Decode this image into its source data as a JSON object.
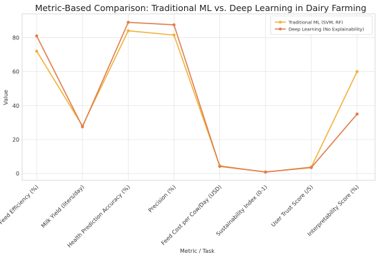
{
  "chart_data": {
    "type": "line",
    "title": "Metric-Based Comparison: Traditional ML vs. Deep Learning in Dairy Farming",
    "xlabel": "Metric / Task",
    "ylabel": "Value",
    "categories": [
      "Feed Efficiency (%)",
      "Milk Yield (liters/day)",
      "Health Prediction Accuracy (%)",
      "Precision (%)",
      "Feed Cost per Cow/Day (USD)",
      "Sustainability Index (0-1)",
      "User Trust Score (/5)",
      "Interpretability Score (%)"
    ],
    "series": [
      {
        "name": "Traditional ML (SVM, RF)",
        "color": "#f0b23a",
        "values": [
          72,
          28,
          84,
          81.5,
          4.5,
          0.8,
          3.8,
          60
        ]
      },
      {
        "name": "Deep Learning (No Explainability)",
        "color": "#e07d4a",
        "values": [
          81,
          27.5,
          89,
          87.5,
          4.2,
          0.9,
          3.5,
          35
        ]
      }
    ],
    "ylim": [
      -4,
      94
    ],
    "yticks": [
      0,
      20,
      40,
      60,
      80
    ],
    "grid": true,
    "legend_position": "top-right"
  }
}
